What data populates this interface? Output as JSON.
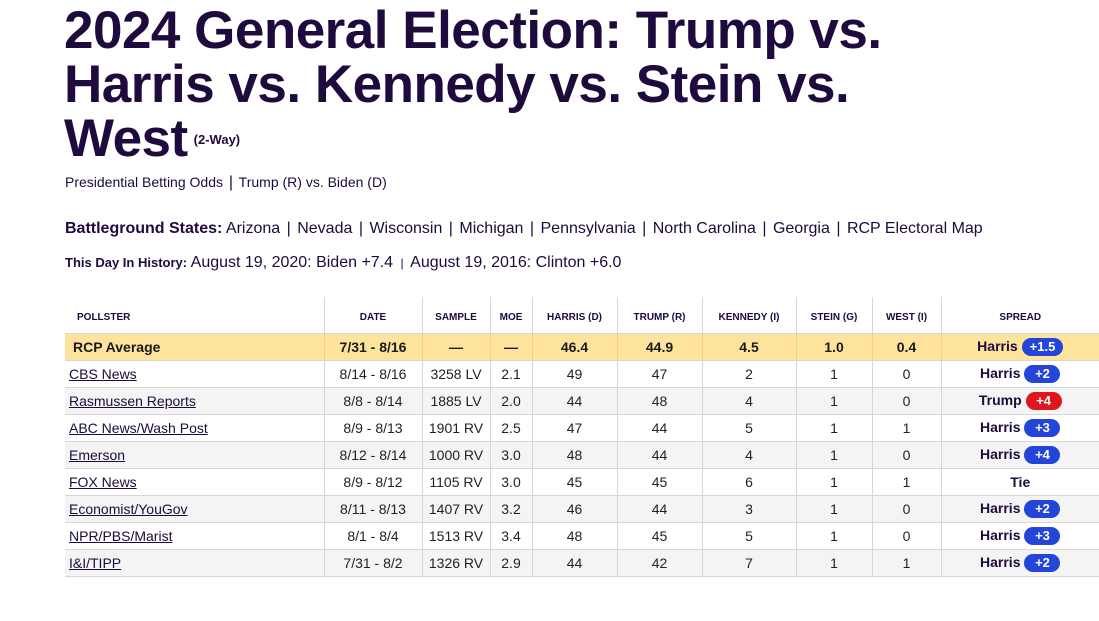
{
  "page": {
    "title": "2024 General Election: Trump vs. Harris vs. Kennedy vs. Stein vs. West",
    "title_tag": "(2-Way)",
    "subnav": [
      {
        "label": "Presidential Betting Odds"
      },
      {
        "label": "Trump (R) vs. Biden (D)"
      }
    ],
    "battleground": {
      "label": "Battleground States:",
      "states": [
        "Arizona",
        "Nevada",
        "Wisconsin",
        "Michigan",
        "Pennsylvania",
        "North Carolina",
        "Georgia",
        "RCP Electoral Map"
      ]
    },
    "history": {
      "label": "This Day In History:",
      "items": [
        "August 19, 2020: Biden +7.4",
        "August 19, 2016: Clinton +6.0"
      ]
    }
  },
  "table": {
    "headers": [
      "POLLSTER",
      "DATE",
      "SAMPLE",
      "MOE",
      "HARRIS (D)",
      "TRUMP (R)",
      "KENNEDY (I)",
      "STEIN (G)",
      "WEST (I)",
      "SPREAD"
    ],
    "average": {
      "pollster": "RCP Average",
      "date": "7/31 - 8/16",
      "sample": "—",
      "moe": "—",
      "harris": "46.4",
      "trump": "44.9",
      "kennedy": "4.5",
      "stein": "1.0",
      "west": "0.4",
      "spread_leader": "Harris",
      "spread_value": "+1.5",
      "spread_color": "#2346d8"
    },
    "rows": [
      {
        "pollster": "CBS News",
        "date": "8/14 - 8/16",
        "sample": "3258 LV",
        "moe": "2.1",
        "harris": "49",
        "trump": "47",
        "kennedy": "2",
        "stein": "1",
        "west": "0",
        "spread_leader": "Harris",
        "spread_value": "+2",
        "spread_color": "#2346d8"
      },
      {
        "pollster": "Rasmussen Reports",
        "date": "8/8 - 8/14",
        "sample": "1885 LV",
        "moe": "2.0",
        "harris": "44",
        "trump": "48",
        "kennedy": "4",
        "stein": "1",
        "west": "0",
        "spread_leader": "Trump",
        "spread_value": "+4",
        "spread_color": "#e0161b"
      },
      {
        "pollster": "ABC News/Wash Post",
        "date": "8/9 - 8/13",
        "sample": "1901 RV",
        "moe": "2.5",
        "harris": "47",
        "trump": "44",
        "kennedy": "5",
        "stein": "1",
        "west": "1",
        "spread_leader": "Harris",
        "spread_value": "+3",
        "spread_color": "#2346d8"
      },
      {
        "pollster": "Emerson",
        "date": "8/12 - 8/14",
        "sample": "1000 RV",
        "moe": "3.0",
        "harris": "48",
        "trump": "44",
        "kennedy": "4",
        "stein": "1",
        "west": "0",
        "spread_leader": "Harris",
        "spread_value": "+4",
        "spread_color": "#2346d8"
      },
      {
        "pollster": "FOX News",
        "date": "8/9 - 8/12",
        "sample": "1105 RV",
        "moe": "3.0",
        "harris": "45",
        "trump": "45",
        "kennedy": "6",
        "stein": "1",
        "west": "1",
        "spread_leader": "Tie",
        "spread_value": "",
        "spread_color": ""
      },
      {
        "pollster": "Economist/YouGov",
        "date": "8/11 - 8/13",
        "sample": "1407 RV",
        "moe": "3.2",
        "harris": "46",
        "trump": "44",
        "kennedy": "3",
        "stein": "1",
        "west": "0",
        "spread_leader": "Harris",
        "spread_value": "+2",
        "spread_color": "#2346d8"
      },
      {
        "pollster": "NPR/PBS/Marist",
        "date": "8/1 - 8/4",
        "sample": "1513 RV",
        "moe": "3.4",
        "harris": "48",
        "trump": "45",
        "kennedy": "5",
        "stein": "1",
        "west": "0",
        "spread_leader": "Harris",
        "spread_value": "+3",
        "spread_color": "#2346d8"
      },
      {
        "pollster": "I&I/TIPP",
        "date": "7/31 - 8/2",
        "sample": "1326 RV",
        "moe": "2.9",
        "harris": "44",
        "trump": "42",
        "kennedy": "7",
        "stein": "1",
        "west": "1",
        "spread_leader": "Harris",
        "spread_value": "+2",
        "spread_color": "#2346d8"
      }
    ]
  }
}
